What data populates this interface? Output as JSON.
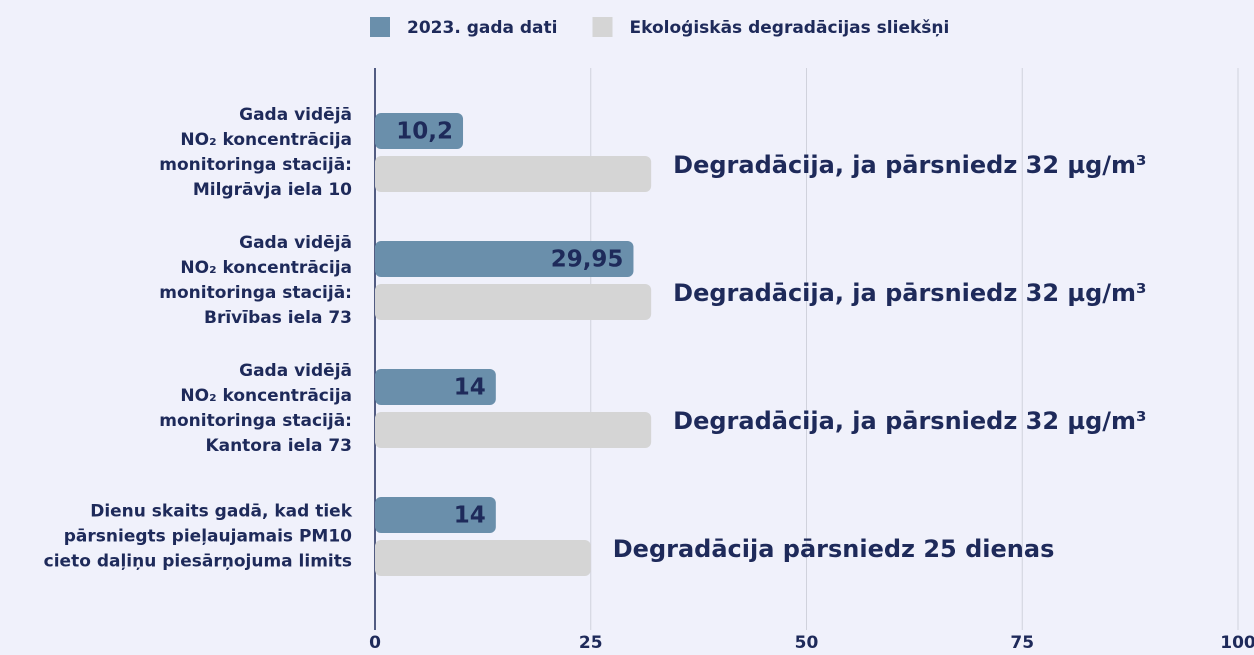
{
  "chart_data": {
    "type": "bar",
    "orientation": "horizontal",
    "categories": [
      [
        "Gada vidējā",
        "NO₂ koncentrācija",
        "monitoringa stacijā:",
        "Milgrāvja iela 10"
      ],
      [
        "Gada vidējā",
        "NO₂ koncentrācija",
        "monitoringa stacijā:",
        "Brīvības iela 73"
      ],
      [
        "Gada vidējā",
        "NO₂ koncentrācija",
        "monitoringa stacijā:",
        "Kantora iela 73"
      ],
      [
        "Dienu skaits gadā, kad tiek",
        "pārsniegts pieļaujamais PM10",
        "cieto daļiņu piesārņojuma limits"
      ]
    ],
    "series": [
      {
        "name": "2023. gada dati",
        "color": "#6a8fab",
        "values": [
          10.2,
          29.95,
          14,
          14
        ],
        "value_labels": [
          "10,2",
          "29,95",
          "14",
          "14"
        ]
      },
      {
        "name": "Ekoloģiskās degradācijas sliekšņi",
        "color": "#d5d5d5",
        "values": [
          32,
          32,
          32,
          25
        ],
        "value_labels": [
          "Degradācija, ja pārsniedz 32 µg/m³",
          "Degradācija, ja pārsniedz 32 µg/m³",
          "Degradācija, ja pārsniedz 32 µg/m³",
          "Degradācija pārsniedz 25 dienas"
        ]
      }
    ],
    "xlim": [
      0,
      100
    ],
    "xticks": [
      0,
      25,
      50,
      75,
      100
    ],
    "grid": true,
    "legend": "top"
  }
}
